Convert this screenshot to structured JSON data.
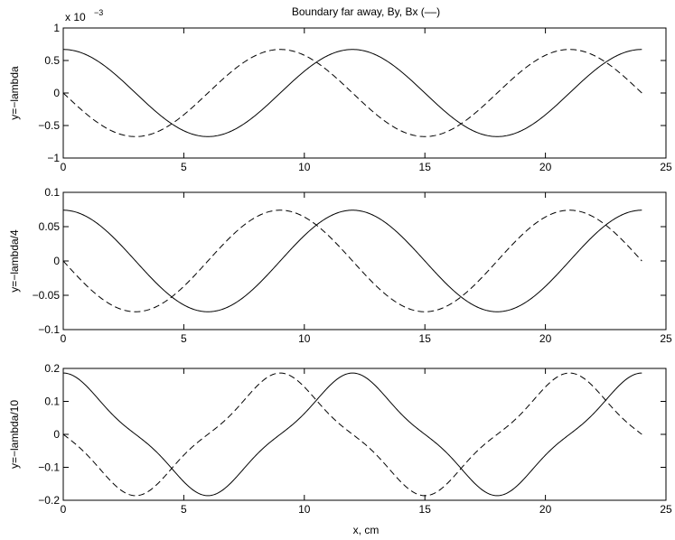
{
  "figure": {
    "title": "Boundary far away, By, Bx (––)",
    "xlabel": "x, cm"
  },
  "chart_data": [
    {
      "type": "line",
      "ylabel": "y=−lambda",
      "exponent_label": "x 10",
      "exponent_power": "−3",
      "xlim": [
        0,
        25
      ],
      "ylim": [
        -1,
        1
      ],
      "xticks": [
        0,
        5,
        10,
        15,
        20,
        25
      ],
      "yticks": [
        -1,
        -0.5,
        0,
        0.5,
        1
      ],
      "ytick_labels": [
        "−1",
        "−0.5",
        "0",
        "0.5",
        "1"
      ],
      "grid": false,
      "series": [
        {
          "key": "By",
          "style": "solid",
          "color": "#000000",
          "amplitude": 0.67,
          "period": 12,
          "phase": "cos",
          "sharpness": 0,
          "x": [
            0,
            3,
            6,
            9,
            12,
            15,
            18,
            21,
            24
          ],
          "y": [
            0.67,
            0,
            -0.67,
            0,
            0.67,
            0,
            -0.67,
            0,
            0.67
          ]
        },
        {
          "key": "Bx",
          "style": "dashed",
          "color": "#000000",
          "amplitude": 0.67,
          "period": 12,
          "phase": "-sin",
          "sharpness": 0,
          "x": [
            0,
            3,
            6,
            9,
            12,
            15,
            18,
            21,
            24
          ],
          "y": [
            0,
            -0.67,
            0,
            0.67,
            0,
            -0.67,
            0,
            0.67,
            0
          ]
        }
      ]
    },
    {
      "type": "line",
      "ylabel": "y=−lambda/4",
      "xlim": [
        0,
        25
      ],
      "ylim": [
        -0.1,
        0.1
      ],
      "xticks": [
        0,
        5,
        10,
        15,
        20,
        25
      ],
      "yticks": [
        -0.1,
        -0.05,
        0,
        0.05,
        0.1
      ],
      "ytick_labels": [
        "−0.1",
        "−0.05",
        "0",
        "0.05",
        "0.1"
      ],
      "grid": false,
      "series": [
        {
          "key": "By",
          "style": "solid",
          "color": "#000000",
          "amplitude": 0.074,
          "period": 12,
          "phase": "cos",
          "sharpness": 0,
          "x": [
            0,
            3,
            6,
            9,
            12,
            15,
            18,
            21,
            24
          ],
          "y": [
            0.074,
            0,
            -0.074,
            0,
            0.074,
            0,
            -0.074,
            0,
            0.074
          ]
        },
        {
          "key": "Bx",
          "style": "dashed",
          "color": "#000000",
          "amplitude": 0.074,
          "period": 12,
          "phase": "-sin",
          "sharpness": 0,
          "x": [
            0,
            3,
            6,
            9,
            12,
            15,
            18,
            21,
            24
          ],
          "y": [
            0,
            -0.074,
            0,
            0.074,
            0,
            -0.074,
            0,
            0.074,
            0
          ]
        }
      ]
    },
    {
      "type": "line",
      "ylabel": "y=−lambda/10",
      "xlim": [
        0,
        25
      ],
      "ylim": [
        -0.2,
        0.2
      ],
      "xticks": [
        0,
        5,
        10,
        15,
        20,
        25
      ],
      "yticks": [
        -0.2,
        -0.1,
        0,
        0.1,
        0.2
      ],
      "ytick_labels": [
        "−0.2",
        "−0.1",
        "0",
        "0.1",
        "0.2"
      ],
      "grid": false,
      "series": [
        {
          "key": "By",
          "style": "solid",
          "color": "#000000",
          "amplitude": 0.186,
          "period": 12,
          "phase": "cos",
          "sharpness": 0.12,
          "x": [
            0,
            3,
            6,
            9,
            12,
            15,
            18,
            21,
            24
          ],
          "y": [
            0.186,
            0,
            -0.186,
            0,
            0.186,
            0,
            -0.186,
            0,
            0.186
          ]
        },
        {
          "key": "Bx",
          "style": "dashed",
          "color": "#000000",
          "amplitude": 0.186,
          "period": 12,
          "phase": "-sin",
          "sharpness": 0.12,
          "x": [
            0,
            3,
            6,
            9,
            12,
            15,
            18,
            21,
            24
          ],
          "y": [
            0,
            -0.186,
            0,
            0.186,
            0,
            -0.186,
            0,
            0.186,
            0
          ]
        }
      ]
    }
  ]
}
